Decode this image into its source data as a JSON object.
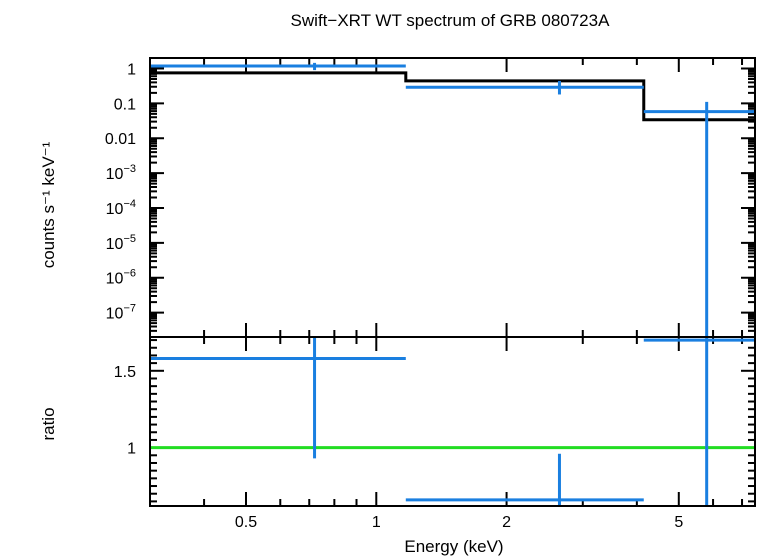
{
  "chart_data": [
    {
      "type": "step",
      "panel": "spectrum",
      "title": "Swift−XRT WT spectrum of GRB 080723A",
      "ylabel": "counts s⁻¹ keV⁻¹",
      "yscale": "log",
      "xscale": "log",
      "xlim": [
        0.3,
        7.5
      ],
      "ylim": [
        2e-08,
        2
      ],
      "ytick_labels": [
        {
          "base": "1",
          "exp": ""
        },
        {
          "base": "0.1",
          "exp": ""
        },
        {
          "base": "0.01",
          "exp": ""
        },
        {
          "base": "10",
          "exp": "−3"
        },
        {
          "base": "10",
          "exp": "−4"
        },
        {
          "base": "10",
          "exp": "−5"
        },
        {
          "base": "10",
          "exp": "−6"
        },
        {
          "base": "10",
          "exp": "−7"
        }
      ],
      "ytick_values": [
        1,
        0.1,
        0.01,
        0.001,
        0.0001,
        1e-05,
        1e-06,
        1e-07
      ],
      "series": [
        {
          "kind": "data",
          "color": "#1a7fe0",
          "points": [
            {
              "x": 0.72,
              "xlo": 0.3,
              "xhi": 1.17,
              "y": 1.18,
              "ylo": 0.9,
              "yhi": 1.45
            },
            {
              "x": 2.65,
              "xlo": 1.17,
              "xhi": 4.15,
              "y": 0.29,
              "ylo": 0.18,
              "yhi": 0.44
            },
            {
              "x": 5.8,
              "xlo": 4.15,
              "xhi": 7.5,
              "y": 0.058,
              "ylo": 1e-08,
              "yhi": 0.11
            }
          ]
        },
        {
          "kind": "model",
          "color": "#000000",
          "steps": [
            {
              "xlo": 0.3,
              "xhi": 1.17,
              "y": 0.75
            },
            {
              "xlo": 1.17,
              "xhi": 4.15,
              "y": 0.44
            },
            {
              "xlo": 4.15,
              "xhi": 7.5,
              "y": 0.034
            }
          ]
        }
      ]
    },
    {
      "type": "step",
      "panel": "ratio",
      "ylabel": "ratio",
      "xlabel": "Energy (keV)",
      "xscale": "log",
      "xlim": [
        0.3,
        7.5
      ],
      "ylim": [
        0.62,
        1.72
      ],
      "ytick_labels": [
        "1.5",
        "1"
      ],
      "ytick_values": [
        1.5,
        1
      ],
      "xtick_labels": [
        "0.5",
        "1",
        "2",
        "5"
      ],
      "xtick_values": [
        0.5,
        1,
        2,
        5
      ],
      "reference_line": {
        "y": 1,
        "color": "#22dd22"
      },
      "series": [
        {
          "kind": "data",
          "color": "#1a7fe0",
          "points": [
            {
              "x": 0.72,
              "xlo": 0.3,
              "xhi": 1.17,
              "y": 1.58,
              "ylo": 0.93,
              "yhi": 1.72
            },
            {
              "x": 2.65,
              "xlo": 1.17,
              "xhi": 4.15,
              "y": 0.66,
              "ylo": 0.62,
              "yhi": 0.96
            },
            {
              "x": 5.8,
              "xlo": 4.15,
              "xhi": 7.5,
              "y": 1.7,
              "ylo": 0.62,
              "yhi": 1.72
            }
          ]
        }
      ]
    }
  ]
}
